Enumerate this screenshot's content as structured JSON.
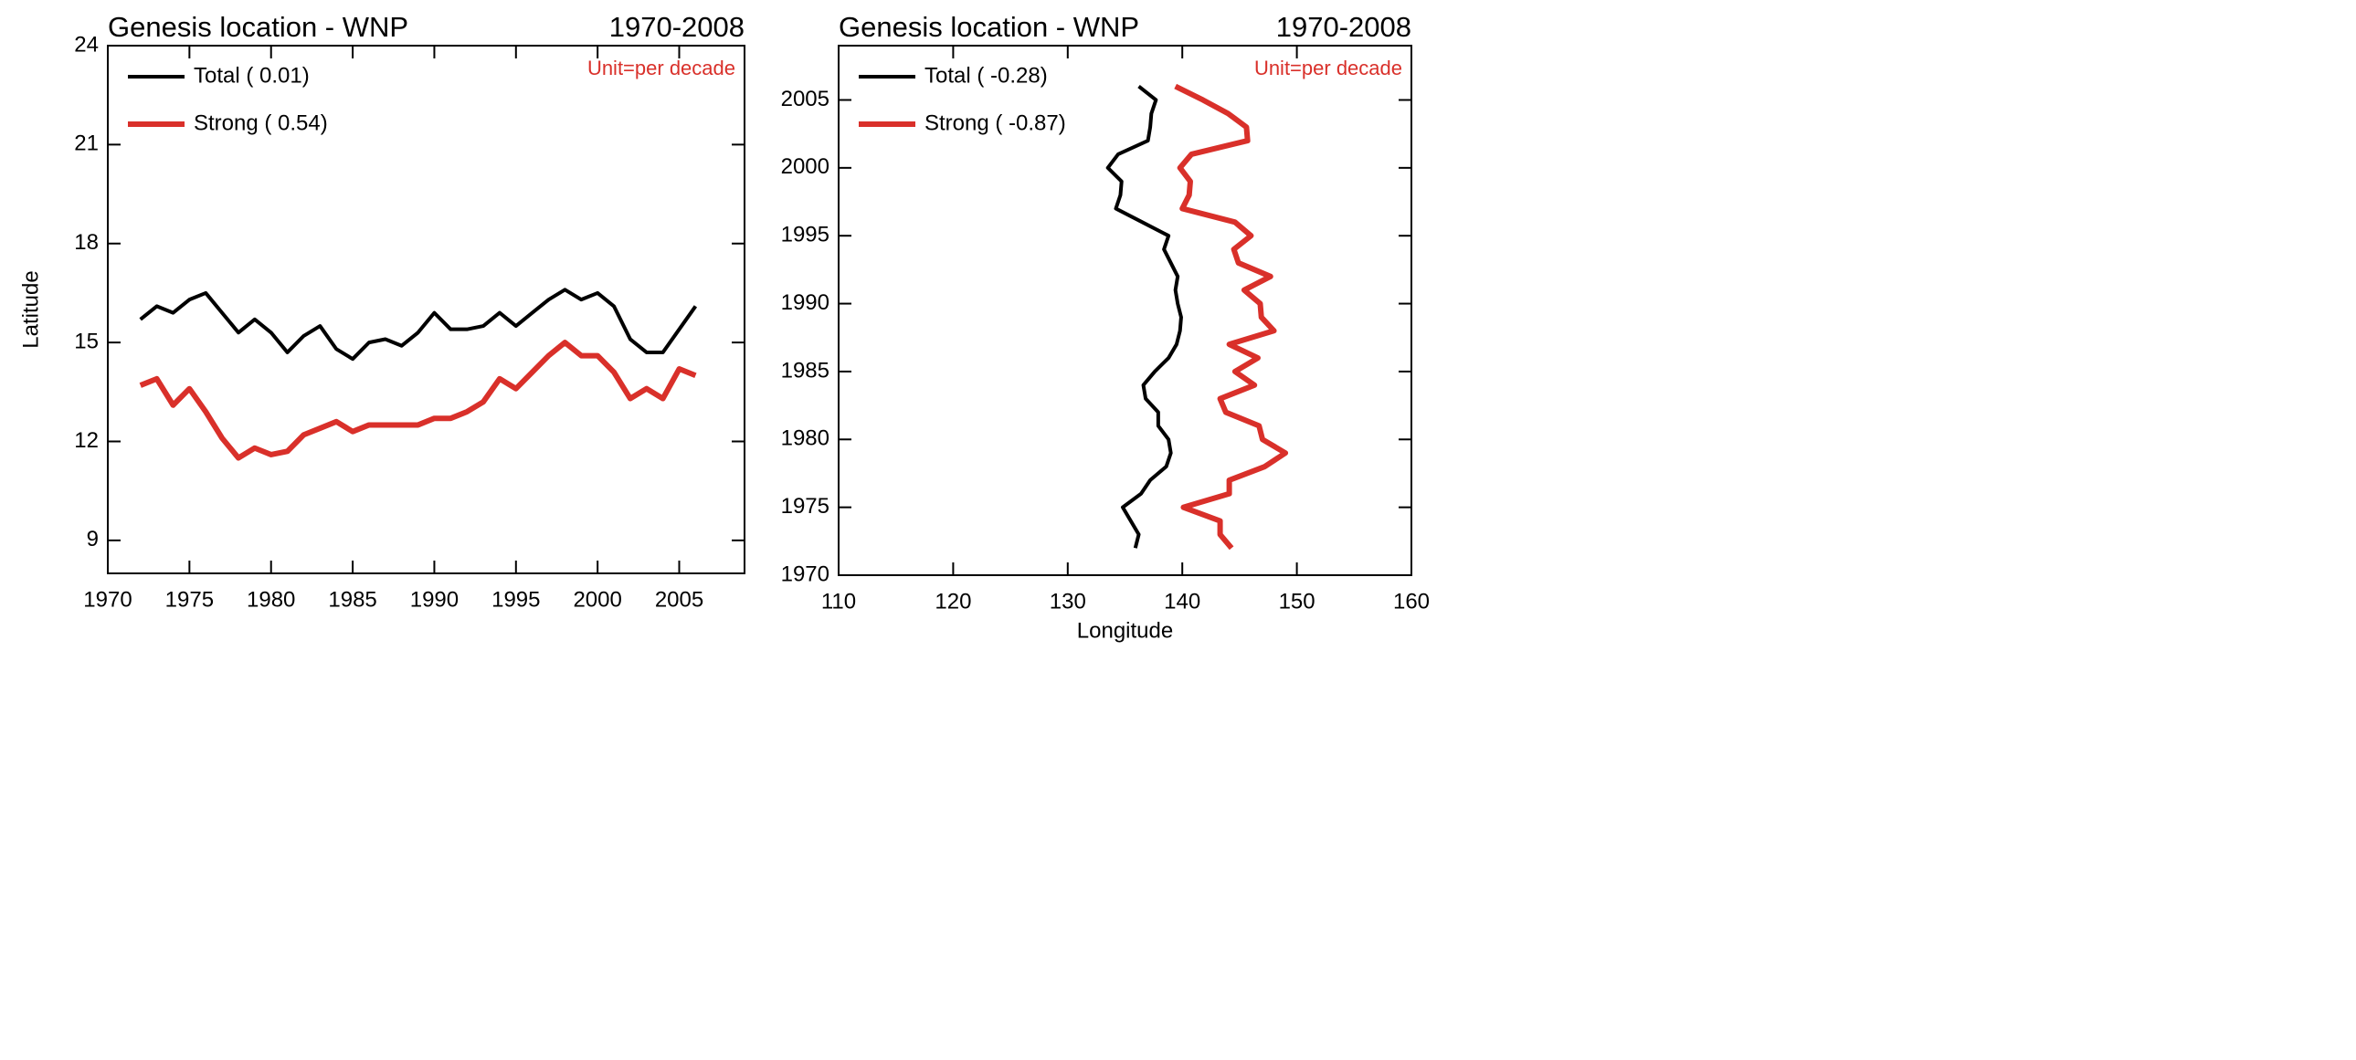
{
  "chart_data": [
    {
      "type": "line",
      "title": "Genesis location - WNP",
      "subtitle": "1970-2008",
      "annotation": "Unit=per decade",
      "ylabel": "Latitude",
      "x": [
        1972,
        1973,
        1974,
        1975,
        1976,
        1977,
        1978,
        1979,
        1980,
        1981,
        1982,
        1983,
        1984,
        1985,
        1986,
        1987,
        1988,
        1989,
        1990,
        1991,
        1992,
        1993,
        1994,
        1995,
        1996,
        1997,
        1998,
        1999,
        2000,
        2001,
        2002,
        2003,
        2004,
        2005,
        2006
      ],
      "xlim": [
        1970,
        2009
      ],
      "xticks": [
        1970,
        1975,
        1980,
        1985,
        1990,
        1995,
        2000,
        2005
      ],
      "ylim": [
        8,
        24
      ],
      "yticks": [
        9,
        12,
        15,
        18,
        21,
        24
      ],
      "series": [
        {
          "name": "Total ( 0.01)",
          "color": "#000000",
          "values": [
            15.7,
            16.1,
            15.9,
            16.3,
            16.5,
            15.9,
            15.3,
            15.7,
            15.3,
            14.7,
            15.2,
            15.5,
            14.8,
            14.5,
            15.0,
            15.1,
            14.9,
            15.3,
            15.9,
            15.4,
            15.4,
            15.5,
            15.9,
            15.5,
            15.9,
            16.3,
            16.6,
            16.3,
            16.5,
            16.1,
            15.1,
            14.7,
            14.7,
            15.4,
            16.1
          ]
        },
        {
          "name": "Strong ( 0.54)",
          "color": "#d9302a",
          "values": [
            13.7,
            13.9,
            13.1,
            13.6,
            12.9,
            12.1,
            11.5,
            11.8,
            11.6,
            11.7,
            12.2,
            12.4,
            12.6,
            12.3,
            12.5,
            12.5,
            12.5,
            12.5,
            12.7,
            12.7,
            12.9,
            13.2,
            13.9,
            13.6,
            14.1,
            14.6,
            15.0,
            14.6,
            14.6,
            14.1,
            13.3,
            13.6,
            13.3,
            14.2,
            14.0
          ]
        }
      ]
    },
    {
      "type": "line",
      "title": "Genesis location - WNP",
      "subtitle": "1970-2008",
      "annotation": "Unit=per decade",
      "xlabel": "Longitude",
      "y": [
        1972,
        1973,
        1974,
        1975,
        1976,
        1977,
        1978,
        1979,
        1980,
        1981,
        1982,
        1983,
        1984,
        1985,
        1986,
        1987,
        1988,
        1989,
        1990,
        1991,
        1992,
        1993,
        1994,
        1995,
        1996,
        1997,
        1998,
        1999,
        2000,
        2001,
        2002,
        2003,
        2004,
        2005,
        2006
      ],
      "xlim": [
        110,
        160
      ],
      "xticks": [
        110,
        120,
        130,
        140,
        150,
        160
      ],
      "ylim": [
        1970,
        2009
      ],
      "yticks": [
        1970,
        1975,
        1980,
        1985,
        1990,
        1995,
        2000,
        2005
      ],
      "series": [
        {
          "name": "Total ( -0.28)",
          "color": "#000000",
          "values": [
            135.9,
            136.2,
            135.5,
            134.8,
            136.4,
            137.2,
            138.6,
            139.0,
            138.8,
            137.9,
            137.9,
            136.8,
            136.6,
            137.6,
            138.8,
            139.5,
            139.8,
            139.9,
            139.6,
            139.4,
            139.6,
            139.0,
            138.4,
            138.8,
            136.5,
            134.2,
            134.6,
            134.7,
            133.5,
            134.4,
            137.0,
            137.2,
            137.3,
            137.7,
            136.2
          ]
        },
        {
          "name": "Strong ( -0.87)",
          "color": "#d9302a",
          "values": [
            144.3,
            143.3,
            143.3,
            140.1,
            144.1,
            144.1,
            147.2,
            149.0,
            147.0,
            146.7,
            143.8,
            143.3,
            146.3,
            144.6,
            146.6,
            144.1,
            148.0,
            146.9,
            146.8,
            145.4,
            147.7,
            144.9,
            144.5,
            146.0,
            144.6,
            140.0,
            140.6,
            140.7,
            139.8,
            140.8,
            145.7,
            145.6,
            144.0,
            141.8,
            139.4
          ]
        }
      ]
    }
  ]
}
